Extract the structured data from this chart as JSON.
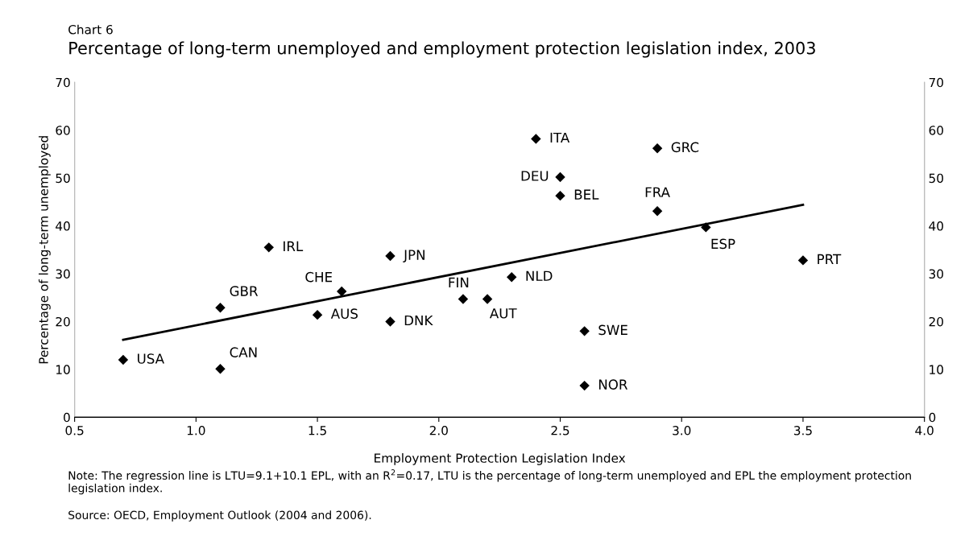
{
  "chart_data": {
    "type": "scatter",
    "title": "Percentage of long-term unemployed and employment protection legislation index, 2003",
    "xlabel": "Employment Protection Legislation Index",
    "ylabel": "Percentage of long-term unemployed",
    "xlim": [
      0.5,
      4.0
    ],
    "xticks": [
      {
        "value": 0.5,
        "label": "0.5"
      },
      {
        "value": 1.0,
        "label": "1.0"
      },
      {
        "value": 1.5,
        "label": "1.5"
      },
      {
        "value": 2.0,
        "label": "2.0"
      },
      {
        "value": 2.5,
        "label": "2.5"
      },
      {
        "value": 3.0,
        "label": "3.0"
      },
      {
        "value": 3.5,
        "label": "3.5"
      },
      {
        "value": 4.0,
        "label": "4.0"
      }
    ],
    "ylim": [
      0,
      70
    ],
    "yticks": [
      0,
      10,
      20,
      30,
      40,
      50,
      60,
      70
    ],
    "y2lim": [
      0,
      70
    ],
    "y2ticks": [
      0,
      10,
      20,
      30,
      40,
      50,
      60,
      70
    ],
    "marker": "diamond",
    "grid": false,
    "legend": false,
    "series": [
      {
        "color": "#000000",
        "x": [
          0.7,
          1.1,
          1.1,
          1.3,
          1.5,
          1.6,
          1.8,
          1.8,
          2.1,
          2.2,
          2.3,
          2.4,
          2.5,
          2.5,
          2.6,
          2.6,
          2.9,
          2.9,
          3.1,
          3.5
        ],
        "values": [
          12.0,
          10.1,
          22.9,
          35.5,
          21.4,
          26.3,
          33.7,
          20.0,
          24.7,
          24.7,
          29.3,
          58.2,
          50.2,
          46.3,
          18.0,
          6.6,
          56.2,
          43.1,
          39.7,
          32.8
        ]
      },
      {
        "type": "line",
        "marker": "none",
        "color": "#000000",
        "x": [
          0.7,
          3.5
        ],
        "values": [
          16.2,
          44.4
        ]
      }
    ],
    "annotations": [
      {
        "text": "USA",
        "x": 0.7,
        "y": 12.0
      },
      {
        "text": "CAN",
        "x": 1.1,
        "y": 10.1
      },
      {
        "text": "GBR",
        "x": 1.1,
        "y": 22.9
      },
      {
        "text": "IRL",
        "x": 1.3,
        "y": 35.5
      },
      {
        "text": "AUS",
        "x": 1.5,
        "y": 21.4
      },
      {
        "text": "CHE",
        "x": 1.6,
        "y": 26.3
      },
      {
        "text": "JPN",
        "x": 1.8,
        "y": 33.7
      },
      {
        "text": "DNK",
        "x": 1.8,
        "y": 20.0
      },
      {
        "text": "FIN",
        "x": 2.1,
        "y": 24.7
      },
      {
        "text": "AUT",
        "x": 2.2,
        "y": 24.7
      },
      {
        "text": "NLD",
        "x": 2.3,
        "y": 29.3
      },
      {
        "text": "ITA",
        "x": 2.4,
        "y": 58.2
      },
      {
        "text": "DEU",
        "x": 2.5,
        "y": 50.2
      },
      {
        "text": "BEL",
        "x": 2.5,
        "y": 46.3
      },
      {
        "text": "SWE",
        "x": 2.6,
        "y": 18.0
      },
      {
        "text": "NOR",
        "x": 2.6,
        "y": 6.6
      },
      {
        "text": "GRC",
        "x": 2.9,
        "y": 56.2
      },
      {
        "text": "FRA",
        "x": 2.9,
        "y": 43.1
      },
      {
        "text": "ESP",
        "x": 3.1,
        "y": 39.7
      },
      {
        "text": "PRT",
        "x": 3.5,
        "y": 32.8
      },
      "Chart 6",
      "Note: The regression line is LTU=9.1+10.1 EPL, with an R$^{2}$=0.17, LTU is the percentage of long-term unemployed and EPL the employment protection legislation index.",
      "Source: OECD, Employment Outlook (2004 and 2006)."
    ]
  }
}
